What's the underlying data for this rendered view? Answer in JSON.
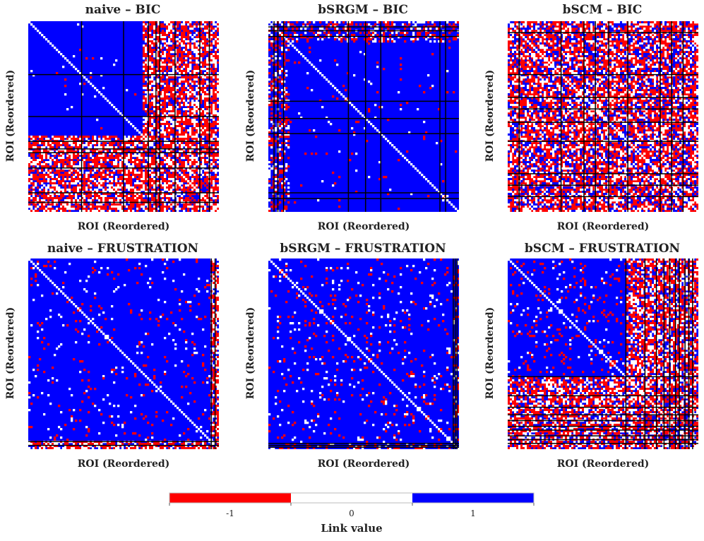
{
  "chart_data": [
    {
      "type": "heatmap",
      "title": "naive – BIC",
      "xlabel": "ROI (Reordered)",
      "ylabel": "ROI (Reordered)",
      "colormap": "link-value",
      "blocks": [
        0.28,
        0.5,
        0.63,
        0.67,
        0.69,
        0.77,
        0.9,
        0.95
      ]
    },
    {
      "type": "heatmap",
      "title": "bSRGM – BIC",
      "xlabel": "ROI (Reordered)",
      "ylabel": "ROI (Reordered)",
      "colormap": "link-value",
      "blocks": [
        0.03,
        0.05,
        0.08,
        0.42,
        0.51,
        0.59,
        0.9,
        0.93
      ]
    },
    {
      "type": "heatmap",
      "title": "bSCM – BIC",
      "xlabel": "ROI (Reordered)",
      "ylabel": "ROI (Reordered)",
      "colormap": "link-value",
      "blocks": [
        0.06,
        0.28,
        0.4,
        0.46,
        0.53,
        0.63,
        0.8,
        0.86,
        0.92
      ]
    },
    {
      "type": "heatmap",
      "title": "naive – FRUSTRATION",
      "xlabel": "ROI (Reordered)",
      "ylabel": "ROI (Reordered)",
      "colormap": "link-value",
      "blocks": [
        0.96,
        0.98
      ]
    },
    {
      "type": "heatmap",
      "title": "bSRGM – FRUSTRATION",
      "xlabel": "ROI (Reordered)",
      "ylabel": "ROI (Reordered)",
      "colormap": "link-value",
      "blocks": [
        0.97,
        0.98,
        0.99
      ]
    },
    {
      "type": "heatmap",
      "title": "bSCM – FRUSTRATION",
      "xlabel": "ROI (Reordered)",
      "ylabel": "ROI (Reordered)",
      "colormap": "link-value",
      "blocks": [
        0.62,
        0.72,
        0.78,
        0.82,
        0.85,
        0.88,
        0.9,
        0.93,
        0.95,
        0.97
      ]
    }
  ],
  "colorbar": {
    "label": "Link value",
    "ticks": [
      "-1",
      "0",
      "1"
    ],
    "values": [
      -1,
      0,
      1
    ],
    "colors": {
      "neg": "#ff0000",
      "zero": "#ffffff",
      "pos": "#0000ff",
      "grid": "#000000"
    }
  }
}
